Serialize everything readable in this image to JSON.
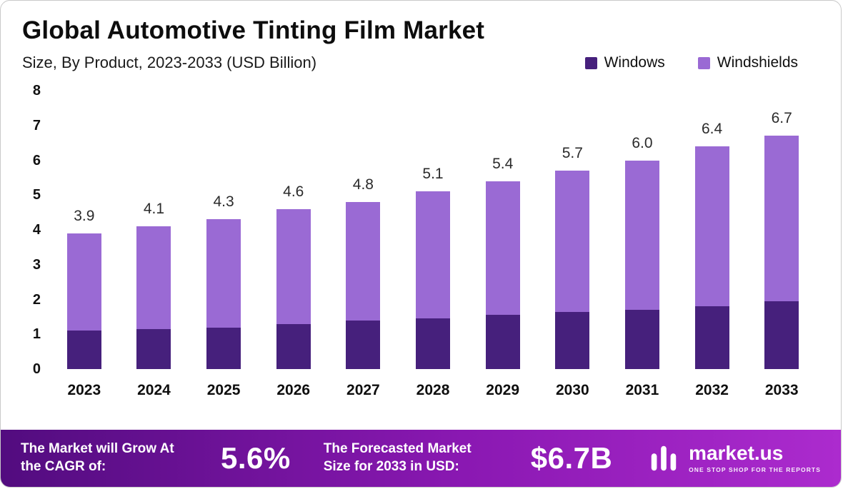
{
  "header": {
    "title": "Global Automotive Tinting Film Market",
    "subtitle": "Size, By Product, 2023-2033 (USD Billion)"
  },
  "legend": [
    {
      "label": "Windows",
      "color": "#46207c"
    },
    {
      "label": "Windshields",
      "color": "#9a6ad4"
    }
  ],
  "chart_data": {
    "type": "bar",
    "stacked": true,
    "title": "Global Automotive Tinting Film Market",
    "subtitle": "Size, By Product, 2023-2033 (USD Billion)",
    "xlabel": "",
    "ylabel": "",
    "ylim": [
      0,
      8
    ],
    "yticks": [
      0,
      1,
      2,
      3,
      4,
      5,
      6,
      7,
      8
    ],
    "grid": false,
    "legend_position": "top-right",
    "categories": [
      "2023",
      "2024",
      "2025",
      "2026",
      "2027",
      "2028",
      "2029",
      "2030",
      "2031",
      "2032",
      "2033"
    ],
    "series": [
      {
        "name": "Windows",
        "color": "#46207c",
        "values": [
          1.1,
          1.15,
          1.2,
          1.3,
          1.4,
          1.45,
          1.55,
          1.65,
          1.7,
          1.8,
          1.95
        ]
      },
      {
        "name": "Windshields",
        "color": "#9a6ad4",
        "values": [
          2.8,
          2.95,
          3.1,
          3.3,
          3.4,
          3.65,
          3.85,
          4.05,
          4.3,
          4.6,
          4.75
        ]
      }
    ],
    "totals": [
      3.9,
      4.1,
      4.3,
      4.6,
      4.8,
      5.1,
      5.4,
      5.7,
      6.0,
      6.4,
      6.7
    ]
  },
  "footer": {
    "cagr_label": "The Market will Grow At the CAGR of:",
    "cagr_value": "5.6%",
    "forecast_label": "The Forecasted Market Size for 2033 in USD:",
    "forecast_value": "$6.7B",
    "brand": "market.us",
    "brand_tagline": "ONE STOP SHOP FOR THE REPORTS"
  }
}
